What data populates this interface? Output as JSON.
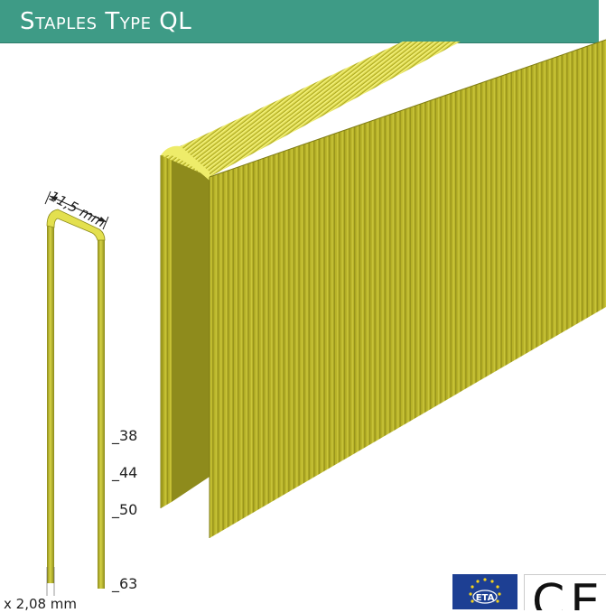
{
  "header": {
    "title": "Staples Type QL",
    "background_color": "#3e9b86"
  },
  "dimensions": {
    "width_label": "11,5 mm",
    "wire_label": "x 2,08 mm",
    "lengths": [
      "_38",
      "_44",
      "_50",
      "_63"
    ]
  },
  "product": {
    "staple_color": "#b9b529",
    "staple_highlight": "#ecea5a"
  },
  "certification": {
    "eta_label": "ETA",
    "ce_label": "CE",
    "eu_blue": "#1d3f93"
  }
}
